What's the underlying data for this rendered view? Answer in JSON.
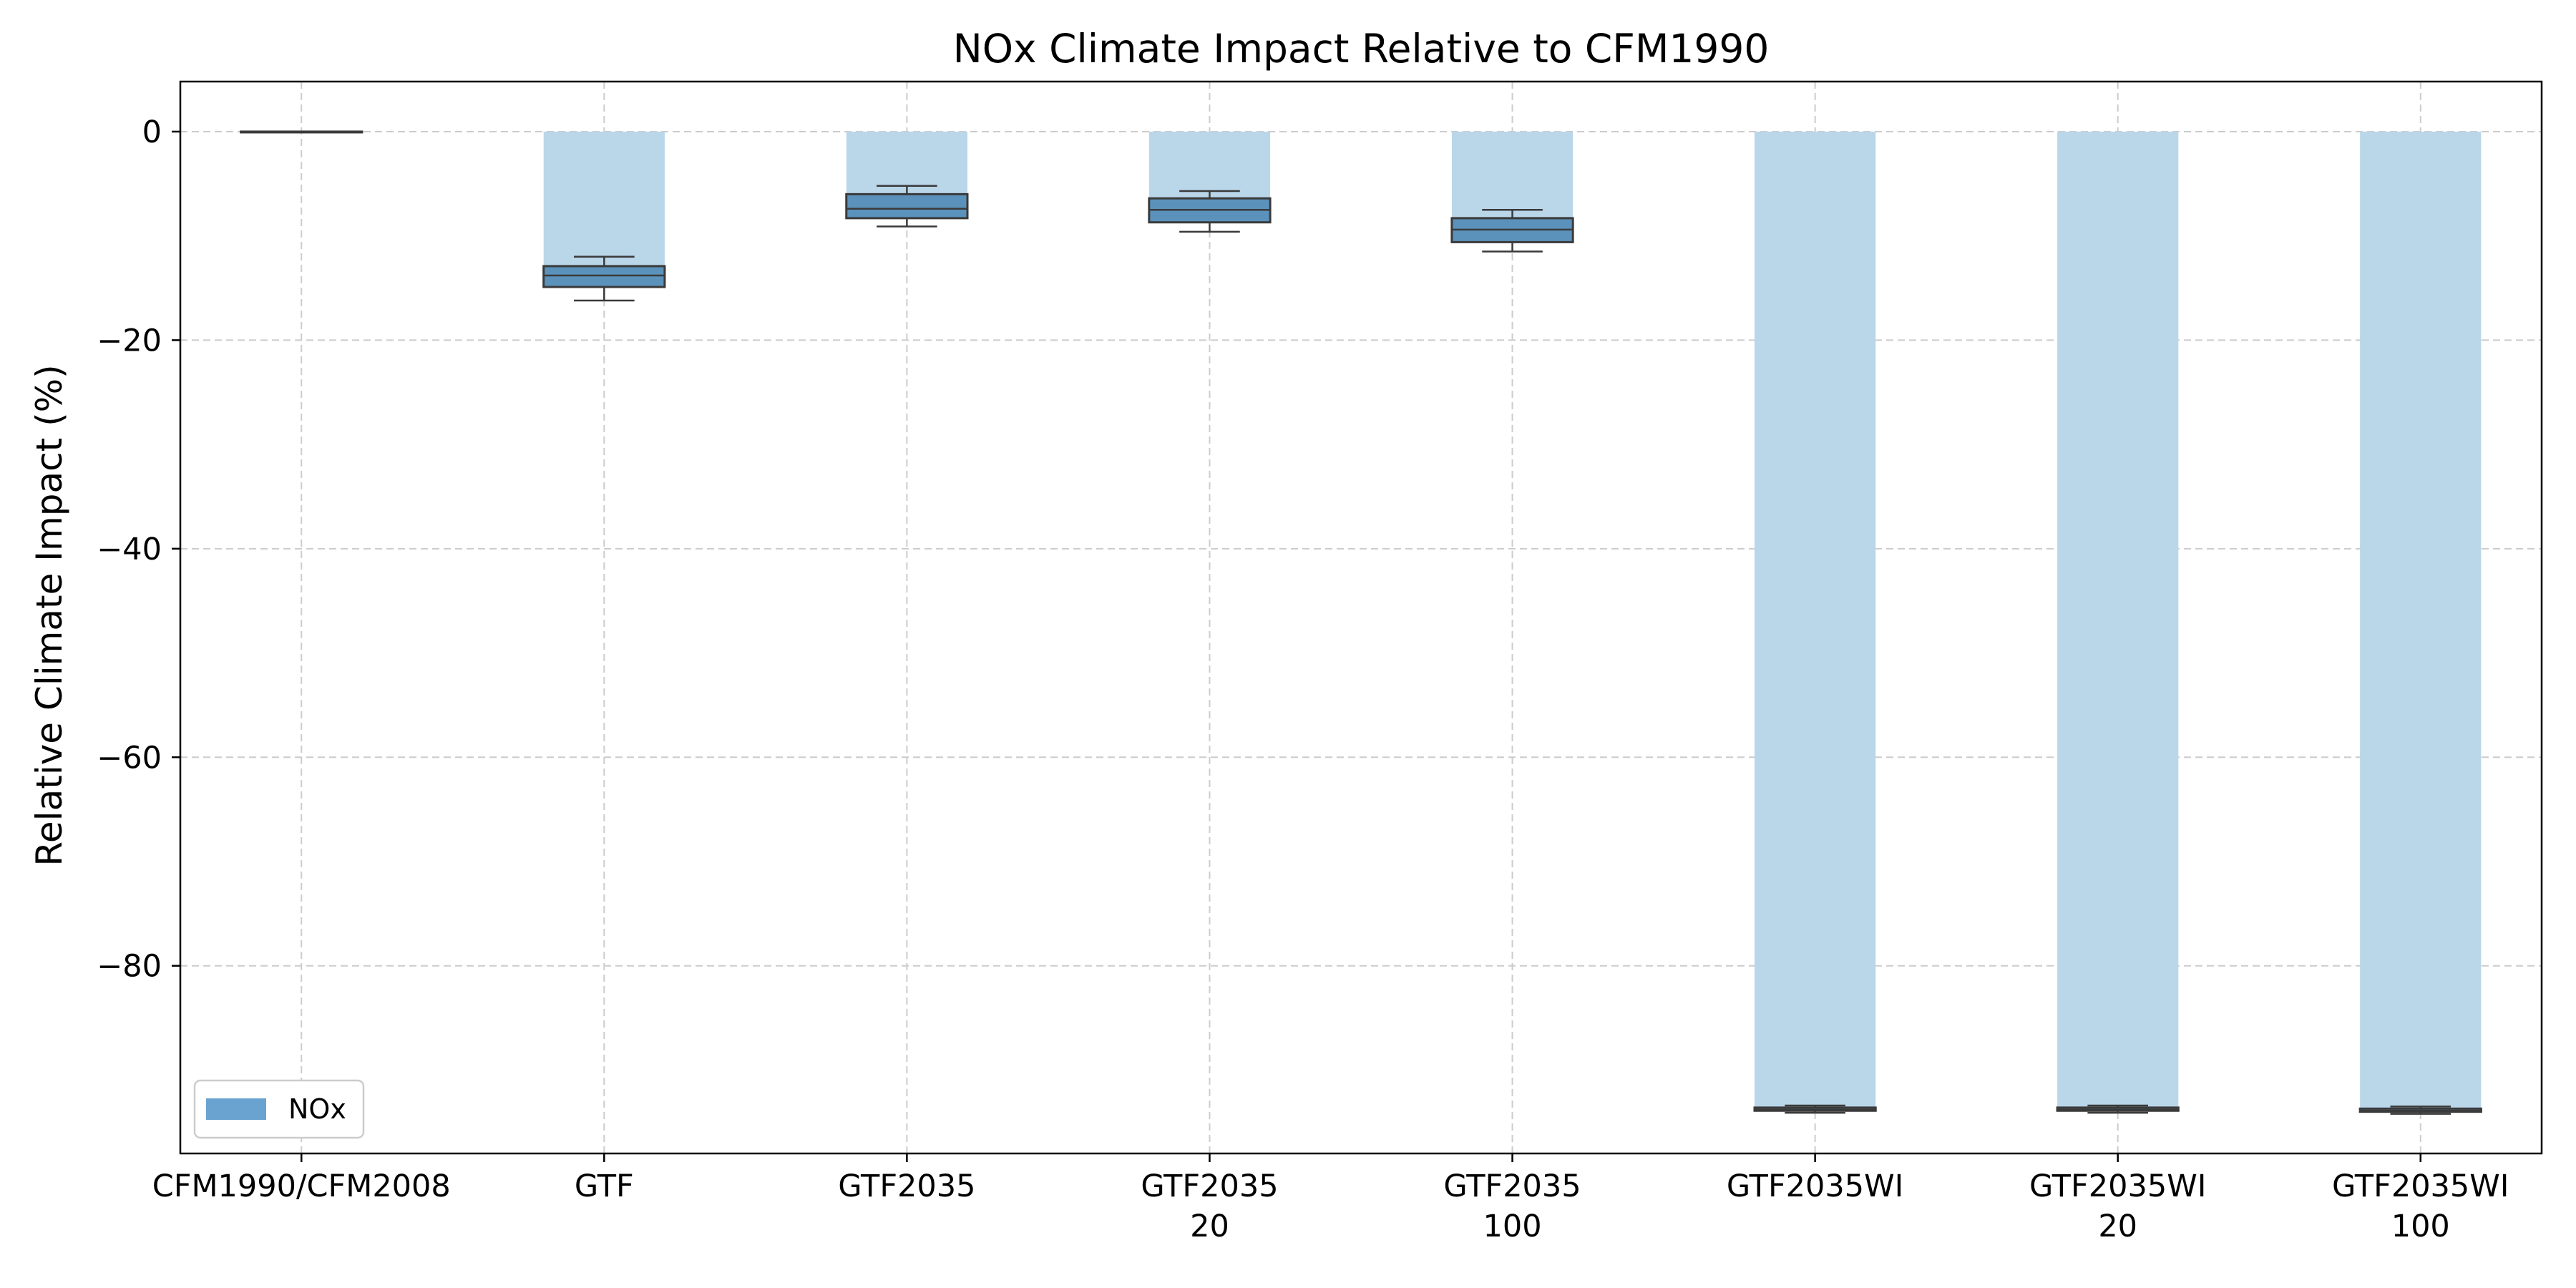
{
  "chart_data": {
    "type": "bar",
    "title": "NOx Climate Impact Relative to CFM1990",
    "xlabel": "",
    "ylabel": "Relative Climate Impact (%)",
    "ylim": [
      -98,
      4.8
    ],
    "yticks": [
      0,
      -20,
      -40,
      -60,
      -80
    ],
    "ytick_labels": [
      "0",
      "−20",
      "−40",
      "−60",
      "−80"
    ],
    "grid": true,
    "legend": {
      "position": "bottom-left",
      "entries": [
        "NOx"
      ]
    },
    "colors": {
      "bar": "#bad6e9",
      "box_fill": "#5b92bb",
      "box_edge": "#3a3a3a",
      "legend_patch": "#6aa3d0",
      "grid": "#cccccc"
    },
    "categories": [
      {
        "lines": [
          "CFM1990/CFM2008"
        ]
      },
      {
        "lines": [
          "GTF"
        ]
      },
      {
        "lines": [
          "GTF2035"
        ]
      },
      {
        "lines": [
          "GTF2035",
          "20"
        ]
      },
      {
        "lines": [
          "GTF2035",
          "100"
        ]
      },
      {
        "lines": [
          "GTF2035WI"
        ]
      },
      {
        "lines": [
          "GTF2035WI",
          "20"
        ]
      },
      {
        "lines": [
          "GTF2035WI",
          "100"
        ]
      }
    ],
    "series": [
      {
        "name": "NOx",
        "values": [
          0,
          -14,
          -7.3,
          -7.6,
          -9.4,
          -93.8,
          -93.8,
          -93.9
        ],
        "box": [
          {
            "whislo": 0,
            "q1": 0,
            "med": 0,
            "q3": 0,
            "whishi": 0
          },
          {
            "whislo": -16.2,
            "q1": -14.9,
            "med": -13.8,
            "q3": -12.9,
            "whishi": -12.0
          },
          {
            "whislo": -9.1,
            "q1": -8.3,
            "med": -7.4,
            "q3": -6.0,
            "whishi": -5.2
          },
          {
            "whislo": -9.6,
            "q1": -8.7,
            "med": -7.5,
            "q3": -6.4,
            "whishi": -5.7
          },
          {
            "whislo": -11.5,
            "q1": -10.6,
            "med": -9.4,
            "q3": -8.3,
            "whishi": -7.5
          },
          {
            "whislo": -94.1,
            "q1": -93.9,
            "med": -93.8,
            "q3": -93.6,
            "whishi": -93.4
          },
          {
            "whislo": -94.1,
            "q1": -93.9,
            "med": -93.8,
            "q3": -93.6,
            "whishi": -93.4
          },
          {
            "whislo": -94.2,
            "q1": -94.0,
            "med": -93.9,
            "q3": -93.7,
            "whishi": -93.5
          }
        ]
      }
    ]
  }
}
